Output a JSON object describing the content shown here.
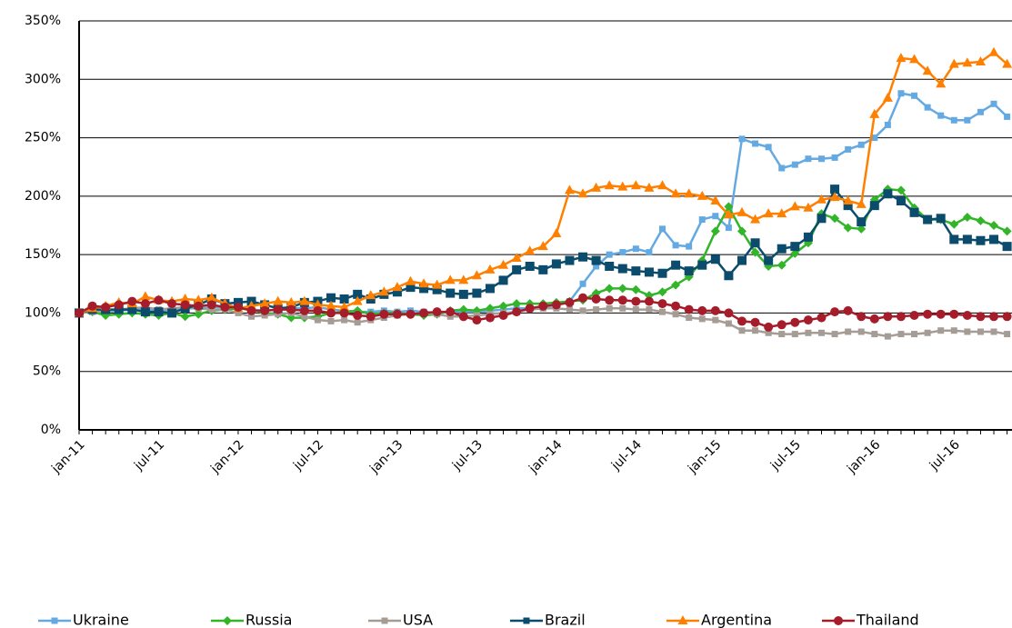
{
  "chart_data": {
    "type": "line",
    "categories": [
      "jan-11",
      null,
      null,
      null,
      null,
      null,
      "jul-11",
      null,
      null,
      null,
      null,
      null,
      "jan-12",
      null,
      null,
      null,
      null,
      null,
      "jul-12",
      null,
      null,
      null,
      null,
      null,
      "jan-13",
      null,
      null,
      null,
      null,
      null,
      "jul-13",
      null,
      null,
      null,
      null,
      null,
      "jan-14",
      null,
      null,
      null,
      null,
      null,
      "jul-14",
      null,
      null,
      null,
      null,
      null,
      "jan-15",
      null,
      null,
      null,
      null,
      null,
      "jul-15",
      null,
      null,
      null,
      null,
      null,
      "jan-16",
      null,
      null,
      null,
      null,
      null,
      "jul-16",
      null,
      null,
      null,
      null
    ],
    "ylim": [
      0,
      350
    ],
    "yticks": [
      {
        "value": 0,
        "label": "0%"
      },
      {
        "value": 50,
        "label": "50%"
      },
      {
        "value": 100,
        "label": "100%"
      },
      {
        "value": 150,
        "label": "150%"
      },
      {
        "value": 200,
        "label": "200%"
      },
      {
        "value": 250,
        "label": "250%"
      },
      {
        "value": 300,
        "label": "300%"
      },
      {
        "value": 350,
        "label": "350%"
      }
    ],
    "grid": true,
    "legend": "bottom",
    "series": [
      {
        "name": "Ukraine",
        "color": "#64a9e2",
        "marker": "square",
        "values": [
          100,
          101,
          101,
          102,
          103,
          103,
          102,
          103,
          104,
          104,
          105,
          105,
          104,
          103,
          102,
          103,
          104,
          104,
          105,
          103,
          102,
          101,
          101,
          102,
          101,
          102,
          101,
          100,
          101,
          101,
          101,
          102,
          103,
          104,
          104,
          105,
          107,
          110,
          125,
          140,
          150,
          152,
          155,
          152,
          172,
          158,
          157,
          180,
          183,
          173,
          249,
          245,
          242,
          224,
          227,
          232,
          232,
          233,
          240,
          244,
          250,
          261,
          288,
          286,
          276,
          269,
          265,
          265,
          272,
          279,
          268
        ]
      },
      {
        "name": "Russia",
        "color": "#33b52a",
        "marker": "diamond",
        "values": [
          100,
          101,
          98,
          99,
          100,
          99,
          98,
          100,
          97,
          99,
          102,
          103,
          104,
          103,
          100,
          99,
          96,
          96,
          97,
          100,
          101,
          102,
          99,
          100,
          100,
          99,
          98,
          99,
          102,
          103,
          102,
          104,
          106,
          108,
          108,
          108,
          109,
          110,
          111,
          117,
          121,
          121,
          120,
          115,
          118,
          124,
          131,
          145,
          170,
          191,
          170,
          152,
          140,
          141,
          151,
          160,
          185,
          181,
          173,
          172,
          197,
          206,
          205,
          190,
          180,
          180,
          176,
          182,
          179,
          175,
          170
        ]
      },
      {
        "name": "USA",
        "color": "#a59d95",
        "marker": "square",
        "values": [
          100,
          101,
          102,
          103,
          104,
          105,
          103,
          104,
          105,
          104,
          103,
          103,
          100,
          97,
          98,
          99,
          100,
          97,
          94,
          93,
          94,
          92,
          94,
          96,
          98,
          99,
          100,
          99,
          97,
          97,
          98,
          99,
          100,
          101,
          103,
          104,
          104,
          103,
          102,
          103,
          104,
          104,
          103,
          103,
          101,
          99,
          96,
          95,
          94,
          91,
          85,
          85,
          83,
          82,
          82,
          83,
          83,
          82,
          84,
          84,
          82,
          80,
          82,
          82,
          83,
          85,
          85,
          84,
          84,
          84,
          82
        ]
      },
      {
        "name": "Brazil",
        "color": "#0b4c6d",
        "marker": "square",
        "values": [
          100,
          103,
          103,
          103,
          103,
          101,
          101,
          100,
          104,
          107,
          112,
          108,
          109,
          110,
          107,
          104,
          105,
          109,
          110,
          113,
          112,
          116,
          112,
          116,
          118,
          122,
          121,
          120,
          117,
          116,
          117,
          121,
          128,
          137,
          140,
          137,
          142,
          145,
          148,
          145,
          140,
          138,
          136,
          135,
          134,
          141,
          136,
          141,
          146,
          132,
          145,
          160,
          145,
          155,
          157,
          165,
          181,
          206,
          192,
          178,
          192,
          202,
          196,
          186,
          180,
          181,
          163,
          163,
          162,
          163,
          157
        ]
      },
      {
        "name": "Argentina",
        "color": "#ff8000",
        "marker": "triangle",
        "values": [
          100,
          104,
          106,
          109,
          108,
          114,
          111,
          110,
          112,
          111,
          113,
          108,
          104,
          106,
          108,
          110,
          109,
          110,
          107,
          106,
          105,
          110,
          115,
          118,
          122,
          127,
          125,
          124,
          128,
          128,
          132,
          137,
          141,
          147,
          153,
          157,
          168,
          205,
          202,
          207,
          209,
          208,
          209,
          207,
          209,
          202,
          202,
          200,
          196,
          184,
          186,
          180,
          185,
          185,
          191,
          190,
          197,
          199,
          196,
          193,
          270,
          284,
          318,
          317,
          307,
          296,
          313,
          314,
          315,
          323,
          313
        ]
      },
      {
        "name": "Thailand",
        "color": "#a51d2b",
        "marker": "circle",
        "values": [
          100,
          106,
          105,
          107,
          110,
          108,
          111,
          108,
          107,
          106,
          107,
          105,
          105,
          102,
          102,
          103,
          103,
          102,
          102,
          100,
          100,
          98,
          97,
          99,
          99,
          99,
          100,
          101,
          101,
          97,
          94,
          96,
          98,
          101,
          104,
          106,
          107,
          109,
          113,
          112,
          111,
          111,
          110,
          110,
          108,
          106,
          103,
          102,
          102,
          100,
          93,
          92,
          88,
          90,
          92,
          94,
          96,
          101,
          102,
          97,
          95,
          97,
          97,
          98,
          99,
          99,
          99,
          98,
          97,
          97,
          97
        ]
      }
    ]
  }
}
